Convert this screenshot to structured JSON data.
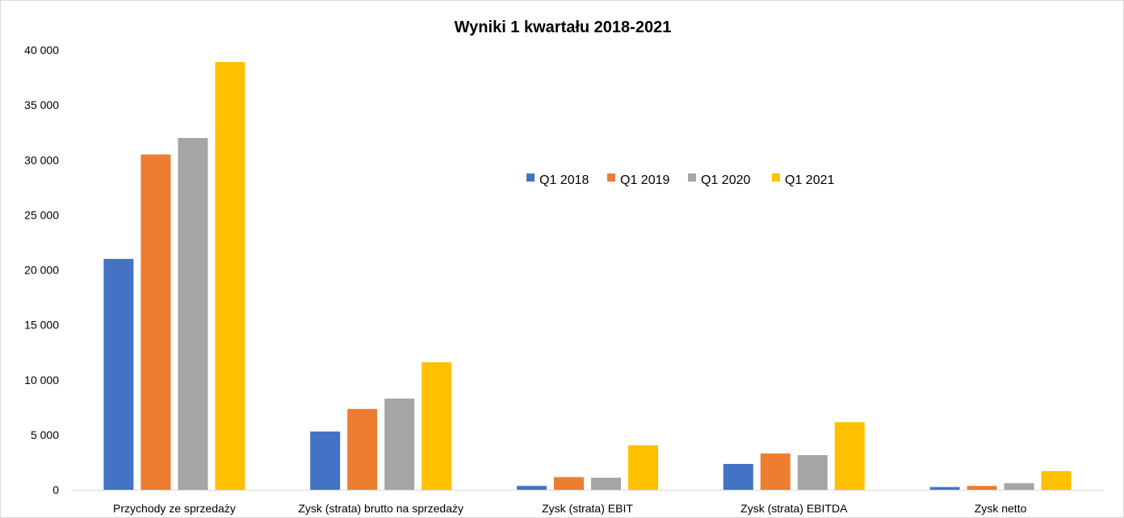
{
  "chart_data": {
    "type": "bar",
    "title": "Wyniki 1 kwartału 2018-2021",
    "xlabel": "",
    "ylabel": "",
    "categories": [
      "Przychody ze sprzedaży",
      "Zysk (strata) brutto na sprzedaży",
      "Zysk (strata) EBIT",
      "Zysk (strata) EBITDA",
      "Zysk netto"
    ],
    "series": [
      {
        "name": "Q1 2018",
        "color": "#4472C4",
        "values": [
          21000,
          5300,
          350,
          2350,
          250
        ]
      },
      {
        "name": "Q1 2019",
        "color": "#ED7D31",
        "values": [
          30500,
          7350,
          1150,
          3300,
          350
        ]
      },
      {
        "name": "Q1 2020",
        "color": "#A5A5A5",
        "values": [
          32000,
          8300,
          1100,
          3150,
          600
        ]
      },
      {
        "name": "Q1 2021",
        "color": "#FFC000",
        "values": [
          38900,
          11600,
          4050,
          6150,
          1700
        ]
      }
    ],
    "ylim": [
      0,
      40000
    ],
    "yticks": [
      0,
      5000,
      10000,
      15000,
      20000,
      25000,
      30000,
      35000,
      40000
    ],
    "ytick_labels": [
      "0",
      "5 000",
      "10 000",
      "15 000",
      "20 000",
      "25 000",
      "30 000",
      "35 000",
      "40 000"
    ],
    "grid": false,
    "legend_position": "inside-top-right"
  }
}
